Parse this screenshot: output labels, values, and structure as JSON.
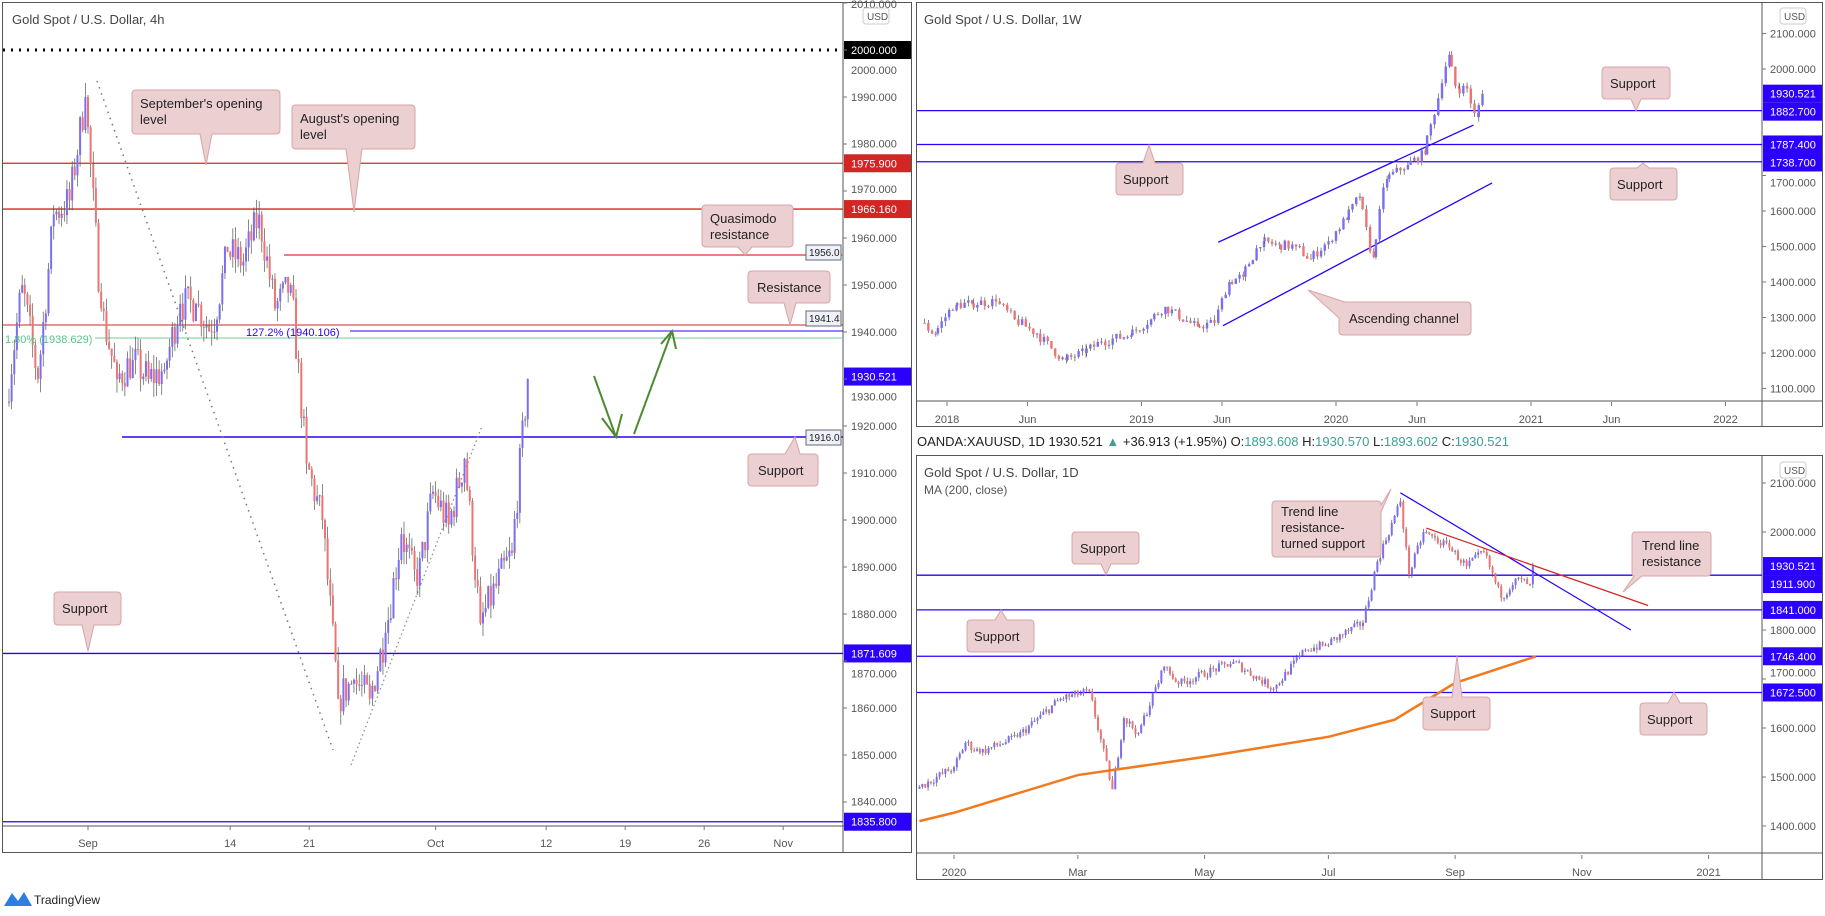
{
  "app": {
    "brand": "TradingView"
  },
  "colors": {
    "up": "#7b6ef2",
    "down": "#ee7474",
    "level_blue": "#2b00ff",
    "level_red": "#d42525",
    "ma": "#f07b1f",
    "callout_fill": "#ecd0d1",
    "callout_border": "#d8a4a6",
    "fib_green": "#6fcf97"
  },
  "left": {
    "title": "Gold Spot / U.S. Dollar, 4h",
    "currency": "USD",
    "annotations": {
      "sept": [
        "September's opening",
        "level"
      ],
      "aug": [
        "August's opening",
        "level"
      ],
      "quasimodo": [
        "Quasimodo",
        "resistance"
      ],
      "resistance": "Resistance",
      "support_right": "Support",
      "support_left": "Support",
      "fib_blue": "127.2% (1940.106)",
      "fib_green": "1.80% (1938.629)",
      "tag_1956": "1956.0",
      "tag_1941": "1941.4",
      "tag_1916": "1916.0"
    }
  },
  "top_right": {
    "title": "Gold Spot / U.S. Dollar, 1W",
    "currency": "USD",
    "annotations": {
      "support_top": "Support",
      "support_left": "Support",
      "support_right": "Support",
      "channel": "Ascending channel"
    }
  },
  "bottom_right": {
    "title": "Gold Spot / U.S. Dollar, 1D",
    "indicator": "MA (200, close)",
    "currency": "USD",
    "annotations": {
      "support_top": "Support",
      "trend_turned": [
        "Trend line",
        "resistance-",
        "turned support"
      ],
      "trend_res": [
        "Trend line",
        "resistance"
      ],
      "support_low_left": "Support",
      "support_mid": "Support",
      "support_right": "Support"
    }
  },
  "info": {
    "symbol": "OANDA:XAUUSD, 1D",
    "last": "1930.521",
    "change": "+36.913 (+1.95%)",
    "o_label": "O:",
    "o": "1893.608",
    "h_label": "H:",
    "h": "1930.570",
    "l_label": "L:",
    "l": "1893.602",
    "c_label": "C:",
    "c": "1930.521"
  },
  "chart_data": [
    {
      "type": "candlestick",
      "title": "Gold Spot / U.S. Dollar, 4h",
      "ylim": [
        1832,
        2012
      ],
      "y_ticks": [
        2010,
        2000,
        1990,
        1980,
        1970,
        1960,
        1950,
        1940,
        1930,
        1920,
        1910,
        1900,
        1890,
        1880,
        1870,
        1860,
        1850,
        1840
      ],
      "x_ticks": [
        [
          "2020-09-01",
          "Sep"
        ],
        [
          "2020-09-14",
          "14"
        ],
        [
          "2020-09-21",
          "21"
        ],
        [
          "2020-10-01",
          "Oct"
        ],
        [
          "2020-10-12",
          "12"
        ],
        [
          "2020-10-19",
          "19"
        ],
        [
          "2020-10-26",
          "26"
        ],
        [
          "2020-11-02",
          "Nov"
        ]
      ],
      "daily_closes": [
        [
          "2020-08-25",
          1925
        ],
        [
          "2020-08-26",
          1950
        ],
        [
          "2020-08-27",
          1930
        ],
        [
          "2020-08-28",
          1965
        ],
        [
          "2020-08-31",
          1968
        ],
        [
          "2020-09-01",
          1990
        ],
        [
          "2020-09-02",
          1945
        ],
        [
          "2020-09-03",
          1930
        ],
        [
          "2020-09-04",
          1934
        ],
        [
          "2020-09-07",
          1930
        ],
        [
          "2020-09-08",
          1932
        ],
        [
          "2020-09-09",
          1946
        ],
        [
          "2020-09-10",
          1946
        ],
        [
          "2020-09-11",
          1940
        ],
        [
          "2020-09-14",
          1957
        ],
        [
          "2020-09-15",
          1955
        ],
        [
          "2020-09-16",
          1965
        ],
        [
          "2020-09-17",
          1945
        ],
        [
          "2020-09-18",
          1950
        ],
        [
          "2020-09-21",
          1912
        ],
        [
          "2020-09-22",
          1900
        ],
        [
          "2020-09-23",
          1862
        ],
        [
          "2020-09-24",
          1866
        ],
        [
          "2020-09-25",
          1862
        ],
        [
          "2020-09-28",
          1876
        ],
        [
          "2020-09-29",
          1897
        ],
        [
          "2020-09-30",
          1886
        ],
        [
          "2020-10-01",
          1906
        ],
        [
          "2020-10-02",
          1899
        ],
        [
          "2020-10-05",
          1913
        ],
        [
          "2020-10-06",
          1878
        ],
        [
          "2020-10-07",
          1886
        ],
        [
          "2020-10-08",
          1893
        ],
        [
          "2020-10-09",
          1930
        ]
      ],
      "levels": [
        {
          "price": 2000.0,
          "label": "2000.000",
          "style": "dotted-black"
        },
        {
          "price": 1975.9,
          "label": "1975.900",
          "style": "red"
        },
        {
          "price": 1966.16,
          "label": "1966.160",
          "style": "red"
        },
        {
          "price": 1930.521,
          "label": "1930.521",
          "style": "last"
        },
        {
          "price": 1871.609,
          "label": "1871.609",
          "style": "blue"
        },
        {
          "price": 1835.8,
          "label": "1835.800",
          "style": "blue"
        }
      ]
    },
    {
      "type": "candlestick",
      "title": "Gold Spot / U.S. Dollar, 1W",
      "ylim": [
        1070,
        2190
      ],
      "y_ticks": [
        2100,
        2000,
        1700,
        1600,
        1500,
        1400,
        1300,
        1200,
        1100
      ],
      "x_ticks": [
        [
          "2018-01-01",
          "2018"
        ],
        [
          "2018-06-01",
          "Jun"
        ],
        [
          "2019-01-01",
          "2019"
        ],
        [
          "2019-06-01",
          "Jun"
        ],
        [
          "2020-01-01",
          "2020"
        ],
        [
          "2020-06-01",
          "Jun"
        ],
        [
          "2021-01-01",
          "2021"
        ],
        [
          "2021-06-01",
          "Jun"
        ],
        [
          "2022-01-01",
          "2022"
        ]
      ],
      "weekly_closes": [
        [
          "2017-11-20",
          1285
        ],
        [
          "2017-12-15",
          1255
        ],
        [
          "2018-01-20",
          1335
        ],
        [
          "2018-02-20",
          1340
        ],
        [
          "2018-04-10",
          1345
        ],
        [
          "2018-05-15",
          1295
        ],
        [
          "2018-06-25",
          1255
        ],
        [
          "2018-08-15",
          1180
        ],
        [
          "2018-09-20",
          1200
        ],
        [
          "2018-10-25",
          1232
        ],
        [
          "2018-12-15",
          1250
        ],
        [
          "2019-01-25",
          1295
        ],
        [
          "2019-02-20",
          1330
        ],
        [
          "2019-04-20",
          1275
        ],
        [
          "2019-05-25",
          1285
        ],
        [
          "2019-06-20",
          1400
        ],
        [
          "2019-07-15",
          1415
        ],
        [
          "2019-08-20",
          1515
        ],
        [
          "2019-09-20",
          1505
        ],
        [
          "2019-10-25",
          1500
        ],
        [
          "2019-11-20",
          1465
        ],
        [
          "2019-12-25",
          1515
        ],
        [
          "2020-01-25",
          1575
        ],
        [
          "2020-02-20",
          1640
        ],
        [
          "2020-03-16",
          1470
        ],
        [
          "2020-04-10",
          1690
        ],
        [
          "2020-05-20",
          1730
        ],
        [
          "2020-06-20",
          1760
        ],
        [
          "2020-07-25",
          1960
        ],
        [
          "2020-08-05",
          2040
        ],
        [
          "2020-08-20",
          1945
        ],
        [
          "2020-09-10",
          1945
        ],
        [
          "2020-09-25",
          1865
        ],
        [
          "2020-10-09",
          1930
        ]
      ],
      "levels": [
        {
          "price": 1930.521,
          "label": "1930.521",
          "style": "last"
        },
        {
          "price": 1882.7,
          "label": "1882.700",
          "style": "blue"
        },
        {
          "price": 1787.4,
          "label": "1787.400",
          "style": "blue"
        },
        {
          "price": 1738.7,
          "label": "1738.700",
          "style": "blue"
        }
      ],
      "channel": {
        "upper": [
          [
            "2019-05-25",
            1512
          ],
          [
            "2020-09-15",
            1842
          ]
        ],
        "lower": [
          [
            "2019-06-03",
            1277
          ],
          [
            "2020-10-20",
            1679
          ]
        ]
      }
    },
    {
      "type": "candlestick",
      "title": "Gold Spot / U.S. Dollar, 1D",
      "ylim": [
        1330,
        2140
      ],
      "y_ticks": [
        2100,
        2000,
        1800,
        1700,
        1600,
        1500,
        1400
      ],
      "x_ticks": [
        [
          "2020-01-01",
          "2020"
        ],
        [
          "2020-03-01",
          "Mar"
        ],
        [
          "2020-05-01",
          "May"
        ],
        [
          "2020-07-01",
          "Jul"
        ],
        [
          "2020-09-01",
          "Sep"
        ],
        [
          "2020-11-01",
          "Nov"
        ],
        [
          "2021-01-01",
          "2021"
        ]
      ],
      "daily_closes": [
        [
          "2019-12-16",
          1476
        ],
        [
          "2020-01-02",
          1520
        ],
        [
          "2020-01-08",
          1570
        ],
        [
          "2020-01-15",
          1550
        ],
        [
          "2020-02-03",
          1582
        ],
        [
          "2020-02-24",
          1660
        ],
        [
          "2020-03-09",
          1675
        ],
        [
          "2020-03-19",
          1475
        ],
        [
          "2020-03-25",
          1620
        ],
        [
          "2020-04-01",
          1590
        ],
        [
          "2020-04-14",
          1725
        ],
        [
          "2020-04-21",
          1690
        ],
        [
          "2020-05-18",
          1735
        ],
        [
          "2020-06-05",
          1680
        ],
        [
          "2020-06-22",
          1760
        ],
        [
          "2020-07-01",
          1770
        ],
        [
          "2020-07-20",
          1815
        ],
        [
          "2020-07-27",
          1940
        ],
        [
          "2020-08-06",
          2062
        ],
        [
          "2020-08-11",
          1912
        ],
        [
          "2020-08-18",
          2000
        ],
        [
          "2020-08-31",
          1968
        ],
        [
          "2020-09-08",
          1930
        ],
        [
          "2020-09-16",
          1960
        ],
        [
          "2020-09-24",
          1865
        ],
        [
          "2020-10-01",
          1905
        ],
        [
          "2020-10-08",
          1893
        ],
        [
          "2020-10-09",
          1930
        ]
      ],
      "ma200": [
        [
          "2019-12-16",
          1410
        ],
        [
          "2020-01-01",
          1427
        ],
        [
          "2020-03-02",
          1504
        ],
        [
          "2020-05-01",
          1541
        ],
        [
          "2020-07-01",
          1582
        ],
        [
          "2020-08-03",
          1617
        ],
        [
          "2020-09-01",
          1692
        ],
        [
          "2020-10-09",
          1746
        ]
      ],
      "levels": [
        {
          "price": 1930.521,
          "label": "1930.521",
          "style": "last"
        },
        {
          "price": 1911.9,
          "label": "1911.900",
          "style": "blue"
        },
        {
          "price": 1841.0,
          "label": "1841.000",
          "style": "blue"
        },
        {
          "price": 1746.4,
          "label": "1746.400",
          "style": "blue"
        },
        {
          "price": 1672.5,
          "label": "1672.500",
          "style": "blue"
        }
      ],
      "trendlines": {
        "blue": [
          [
            "2020-08-05",
            2080
          ],
          [
            "2020-11-25",
            1800
          ]
        ],
        "red": [
          [
            "2020-08-18",
            2008
          ],
          [
            "2020-12-03",
            1850
          ]
        ]
      }
    }
  ]
}
